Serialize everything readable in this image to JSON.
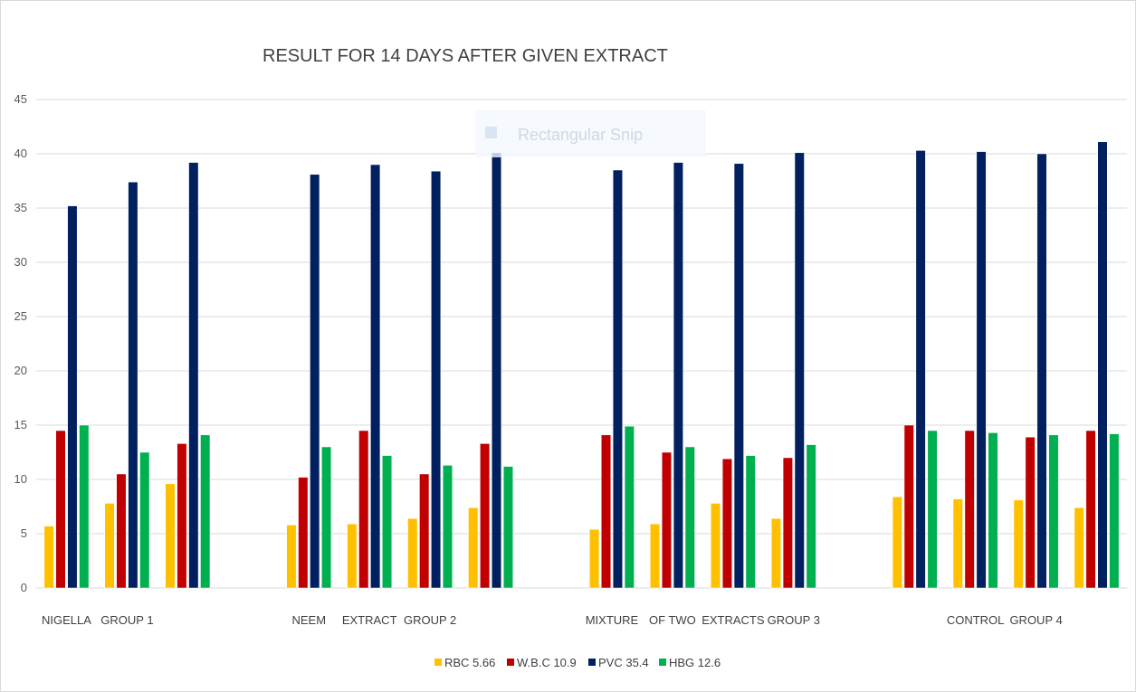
{
  "chart_data": {
    "type": "bar",
    "title": "RESULT FOR 14 DAYS AFTER GIVEN EXTRACT",
    "xlabel": "",
    "ylabel": "",
    "ylim": [
      0,
      45
    ],
    "yticks": [
      0,
      5,
      10,
      15,
      20,
      25,
      30,
      35,
      40,
      45
    ],
    "grid": true,
    "legend_position": "bottom",
    "categories": [
      "NIGELLA",
      "GROUP 1",
      "",
      "",
      "NEEM",
      "EXTRACT",
      "GROUP 2",
      "",
      "",
      "MIXTURE",
      "OF TWO",
      "EXTRACTS",
      "GROUP 3",
      "",
      "",
      "CONTROL",
      "GROUP 4",
      ""
    ],
    "series": [
      {
        "name": "RBC 5.66",
        "color": "#ffc000",
        "values": [
          5.7,
          7.8,
          9.6,
          null,
          5.8,
          5.9,
          6.4,
          7.4,
          null,
          5.4,
          5.9,
          7.8,
          6.4,
          null,
          8.4,
          8.2,
          8.1,
          7.4
        ]
      },
      {
        "name": "W.B.C 10.9",
        "color": "#c00000",
        "values": [
          14.5,
          10.5,
          13.3,
          null,
          10.2,
          14.5,
          10.5,
          13.3,
          null,
          14.1,
          12.5,
          11.9,
          12.0,
          null,
          15.0,
          14.5,
          13.9,
          14.5
        ]
      },
      {
        "name": "PVC 35.4",
        "color": "#002060",
        "values": [
          35.2,
          37.4,
          39.2,
          null,
          38.1,
          39.0,
          38.4,
          40.1,
          null,
          38.5,
          39.2,
          39.1,
          40.1,
          null,
          40.3,
          40.2,
          40.0,
          41.1
        ]
      },
      {
        "name": "HBG 12.6",
        "color": "#00b050",
        "values": [
          15.0,
          12.5,
          14.1,
          null,
          13.0,
          12.2,
          11.3,
          11.2,
          null,
          14.9,
          13.0,
          12.2,
          13.2,
          null,
          14.5,
          14.3,
          14.1,
          14.2
        ]
      }
    ]
  },
  "overlay": {
    "snip_label": "Rectangular Snip"
  }
}
